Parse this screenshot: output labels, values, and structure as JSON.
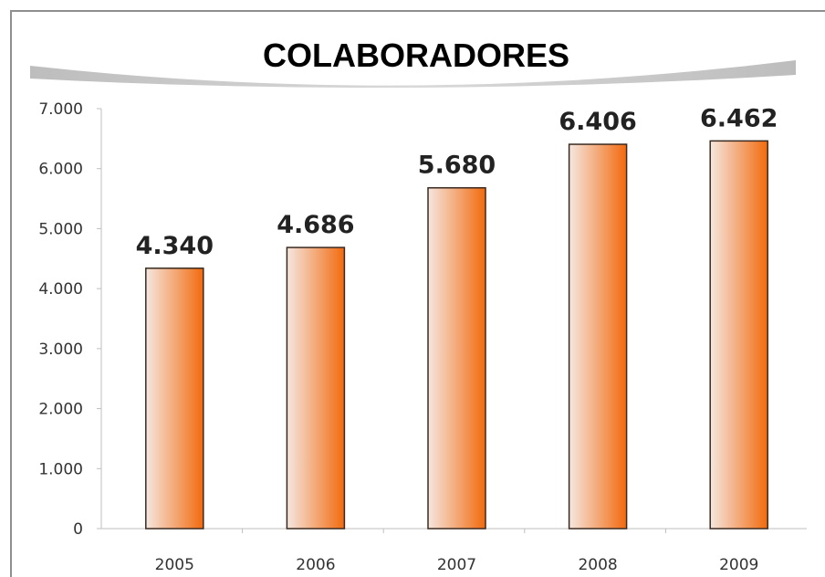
{
  "chart_data": {
    "type": "bar",
    "title": "COLABORADORES",
    "categories": [
      "2005",
      "2006",
      "2007",
      "2008",
      "2009"
    ],
    "values": [
      4340,
      4686,
      5680,
      6406,
      6462
    ],
    "value_labels": [
      "4.340",
      "4.686",
      "5.680",
      "6.406",
      "6.462"
    ],
    "yticks": [
      "0",
      "1.000",
      "2.000",
      "3.000",
      "4.000",
      "5.000",
      "6.000",
      "7.000"
    ],
    "ylim": [
      0,
      7000
    ],
    "grid": false,
    "legend": "none",
    "colors": {
      "bar_light": "#f4e7df",
      "bar_dark": "#f26a0d",
      "bar_outline": "#3a2a20",
      "title_band": "#bdbdbd"
    }
  }
}
